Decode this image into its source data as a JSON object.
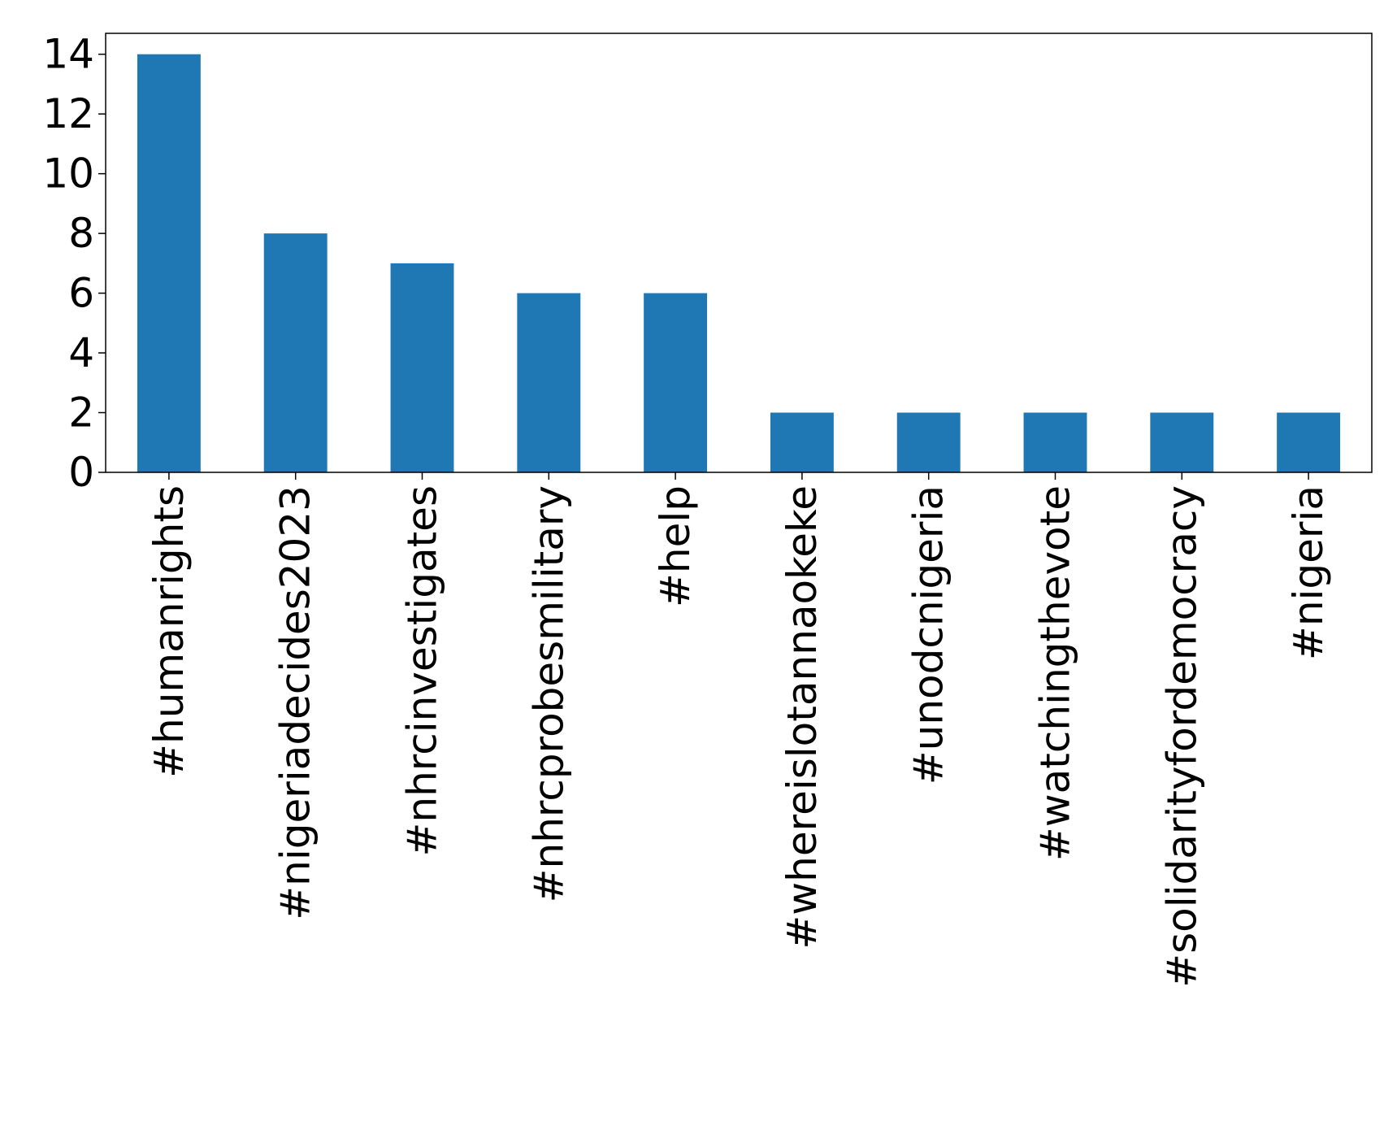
{
  "chart_data": {
    "type": "bar",
    "title": "",
    "xlabel": "",
    "ylabel": "",
    "categories": [
      "#humanrights",
      "#nigeriadecides2023",
      "#nhrcinvestigates",
      "#nhrcprobesmilitary",
      "#help",
      "#whereislotannaokeke",
      "#unodcnigeria",
      "#watchingthevote",
      "#solidarityfordemocracy",
      "#nigeria"
    ],
    "values": [
      14,
      8,
      7,
      6,
      6,
      2,
      2,
      2,
      2,
      2
    ],
    "ylim": [
      0,
      14.7
    ],
    "yticks": [
      0,
      2,
      4,
      6,
      8,
      10,
      12,
      14
    ],
    "bar_color": "#1f77b4",
    "grid": false,
    "legend": "none"
  }
}
